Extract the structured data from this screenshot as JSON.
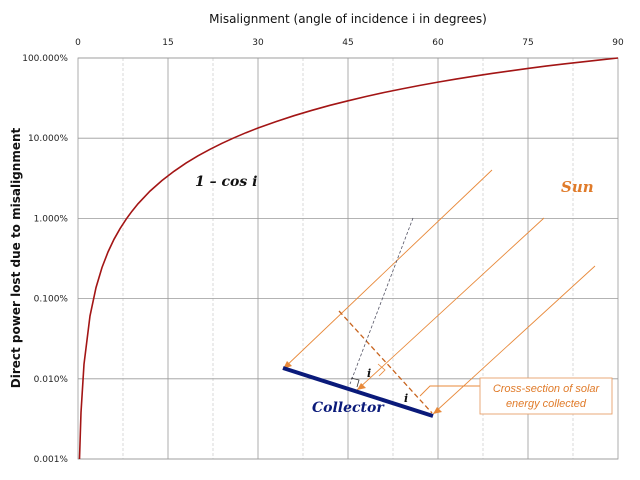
{
  "chart_data": {
    "type": "line",
    "title": "",
    "xlabel": "Misalignment  (angle of incidence  i  in degrees)",
    "ylabel": "Direct power lost due to misalignment",
    "xlim": [
      0,
      90
    ],
    "x_ticks": [
      0,
      15,
      30,
      45,
      60,
      75,
      90
    ],
    "x_tick_labels": [
      "0",
      "15",
      "30",
      "45",
      "60",
      "75",
      "90"
    ],
    "ylim": [
      1e-05,
      1
    ],
    "y_scale": "log",
    "y_ticks": [
      1e-05,
      0.0001,
      0.001,
      0.01,
      0.1,
      1
    ],
    "y_tick_labels": [
      "0.001%",
      "0.010%",
      "0.100%",
      "1.000%",
      "10.000%",
      "100.000%"
    ],
    "x_axis_position": "top",
    "grid": true,
    "series": [
      {
        "name": "",
        "color": "#a31515",
        "x": [
          0.256,
          0.5,
          1,
          2,
          3,
          4,
          5,
          6,
          7,
          8,
          9,
          10,
          12,
          14,
          16,
          18,
          20,
          22,
          24,
          26,
          28,
          30,
          33,
          36,
          39,
          42,
          45,
          48,
          51,
          54,
          57,
          60,
          63,
          66,
          69,
          72,
          75,
          78,
          81,
          84,
          87,
          90
        ],
        "values": [
          1e-05,
          3.81e-05,
          0.000152,
          0.000609,
          0.00137,
          0.00244,
          0.00381,
          0.00548,
          0.00745,
          0.00973,
          0.0123,
          0.0152,
          0.0219,
          0.0297,
          0.0387,
          0.0489,
          0.0603,
          0.0728,
          0.0865,
          0.1012,
          0.117,
          0.134,
          0.161,
          0.191,
          0.223,
          0.257,
          0.293,
          0.331,
          0.371,
          0.412,
          0.455,
          0.5,
          0.546,
          0.593,
          0.642,
          0.691,
          0.741,
          0.792,
          0.844,
          0.895,
          0.948,
          1.0
        ]
      }
    ],
    "annotations": {
      "curve_label": "1 – cos i",
      "sun_label": "Sun",
      "collector_label": "Collector",
      "angle_label": "i",
      "cross_section_label_line1": "Cross-section of solar",
      "cross_section_label_line2": "energy collected"
    }
  },
  "colors": {
    "curve": "#a31515",
    "sun_rays": "#e8893a",
    "collector": "#0a1a7a",
    "grid_major": "#9a9a9a",
    "grid_minor": "#c8c8c8"
  }
}
